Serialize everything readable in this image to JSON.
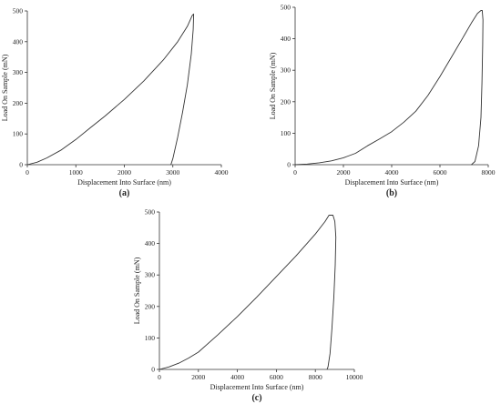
{
  "chart_data": [
    {
      "type": "line",
      "panel_label": "(a)",
      "xlabel": "Displacement Into Surface (nm)",
      "ylabel": "Load On Sample (mN)",
      "xlim": [
        0,
        4000
      ],
      "ylim": [
        0,
        500
      ],
      "xticks": [
        0,
        1000,
        2000,
        3000,
        4000
      ],
      "yticks": [
        0,
        100,
        200,
        300,
        400,
        500
      ],
      "x_tick_labels": [
        "0",
        "1000",
        "2000",
        "3000",
        "4000"
      ],
      "y_tick_labels": [
        "0",
        "100",
        "200",
        "300",
        "400",
        "500"
      ],
      "series": [
        {
          "x": [
            0,
            200,
            400,
            700,
            1000,
            1300,
            1600,
            2000,
            2400,
            2800,
            3100,
            3300,
            3400,
            3430,
            3420,
            3380,
            3300,
            3200,
            3100,
            3000,
            2960
          ],
          "y": [
            0,
            8,
            22,
            48,
            82,
            120,
            158,
            212,
            272,
            340,
            400,
            450,
            485,
            490,
            440,
            360,
            260,
            170,
            90,
            20,
            0
          ]
        }
      ]
    },
    {
      "type": "line",
      "panel_label": "(b)",
      "xlabel": "Displacement Into Surface (nm)",
      "ylabel": "Load On Sample (mN)",
      "xlim": [
        0,
        8000
      ],
      "ylim": [
        0,
        500
      ],
      "xticks": [
        0,
        2000,
        4000,
        6000,
        8000
      ],
      "yticks": [
        0,
        100,
        200,
        300,
        400,
        500
      ],
      "x_tick_labels": [
        "0",
        "2000",
        "4000",
        "6000",
        "8000"
      ],
      "y_tick_labels": [
        "0",
        "100",
        "200",
        "300",
        "400",
        "500"
      ],
      "series": [
        {
          "x": [
            0,
            500,
            1000,
            1500,
            2000,
            2500,
            3000,
            3500,
            4000,
            4500,
            5000,
            5500,
            6000,
            6500,
            7000,
            7300,
            7550,
            7700,
            7750,
            7780,
            7770,
            7740,
            7700,
            7600,
            7450,
            7300
          ],
          "y": [
            0,
            2,
            6,
            12,
            22,
            36,
            60,
            82,
            105,
            135,
            170,
            220,
            280,
            345,
            410,
            450,
            480,
            490,
            490,
            460,
            380,
            260,
            150,
            60,
            10,
            0
          ]
        }
      ]
    },
    {
      "type": "line",
      "panel_label": "(c)",
      "xlabel": "Displacement Into Surface (nm)",
      "ylabel": "Load On Sample (mN)",
      "xlim": [
        0,
        10000
      ],
      "ylim": [
        0,
        500
      ],
      "xticks": [
        0,
        2000,
        4000,
        6000,
        8000,
        10000
      ],
      "yticks": [
        0,
        100,
        200,
        300,
        400,
        500
      ],
      "x_tick_labels": [
        "0",
        "2000",
        "4000",
        "6000",
        "8000",
        "10000"
      ],
      "y_tick_labels": [
        "0",
        "100",
        "200",
        "300",
        "400",
        "500"
      ],
      "series": [
        {
          "x": [
            0,
            500,
            1000,
            1500,
            2000,
            3000,
            4000,
            5000,
            6000,
            7000,
            8000,
            8500,
            8700,
            8900,
            9000,
            9050,
            9020,
            8950,
            8850,
            8750,
            8650,
            8600
          ],
          "y": [
            0,
            8,
            20,
            36,
            55,
            110,
            168,
            230,
            295,
            360,
            430,
            470,
            490,
            490,
            470,
            420,
            330,
            230,
            130,
            50,
            8,
            0
          ]
        }
      ]
    }
  ]
}
